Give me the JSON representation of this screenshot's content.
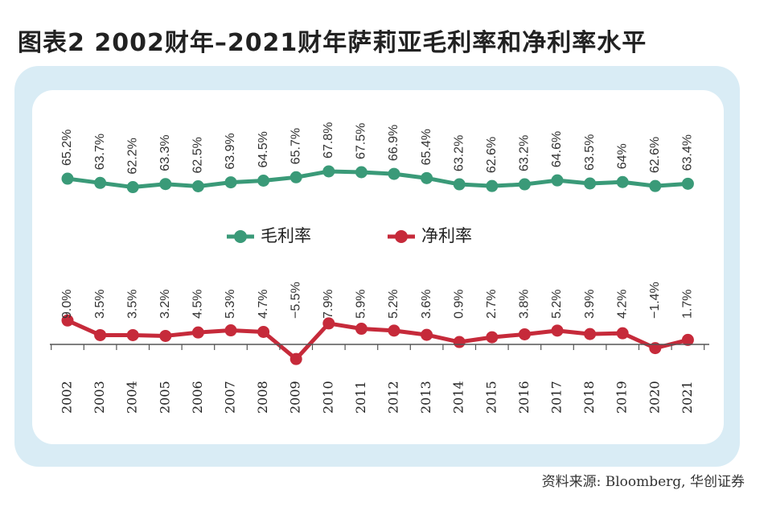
{
  "title": "图表2  2002财年–2021财年萨莉亚毛利率和净利率水平",
  "source": "资料来源: Bloomberg, 华创证券",
  "colors": {
    "gross": "#3a9a78",
    "net": "#c62a3a",
    "frame_outer": "#d9ecf5",
    "frame_inner": "#ffffff"
  },
  "chart_data": {
    "type": "line",
    "categories": [
      "2002",
      "2003",
      "2004",
      "2005",
      "2006",
      "2007",
      "2008",
      "2009",
      "2010",
      "2011",
      "2012",
      "2013",
      "2014",
      "2015",
      "2016",
      "2017",
      "2018",
      "2019",
      "2020",
      "2021"
    ],
    "series": [
      {
        "name": "毛利率",
        "values": [
          65.2,
          63.7,
          62.2,
          63.3,
          62.5,
          63.9,
          64.5,
          65.7,
          67.8,
          67.5,
          66.9,
          65.4,
          63.2,
          62.6,
          63.2,
          64.6,
          63.5,
          64,
          62.6,
          63.4
        ],
        "labels": [
          "65.2%",
          "63.7%",
          "62.2%",
          "63.3%",
          "62.5%",
          "63.9%",
          "64.5%",
          "65.7%",
          "67.8%",
          "67.5%",
          "66.9%",
          "65.4%",
          "63.2%",
          "62.6%",
          "63.2%",
          "64.6%",
          "63.5%",
          "64%",
          "62.6%",
          "63.4%"
        ]
      },
      {
        "name": "净利率",
        "values": [
          9.0,
          3.5,
          3.5,
          3.2,
          4.5,
          5.3,
          4.7,
          -5.5,
          7.9,
          5.9,
          5.2,
          3.6,
          0.9,
          2.7,
          3.8,
          5.2,
          3.9,
          4.2,
          -1.4,
          1.7
        ],
        "labels": [
          "9.0%",
          "3.5%",
          "3.5%",
          "3.2%",
          "4.5%",
          "5.3%",
          "4.7%",
          "−5.5%",
          "7.9%",
          "5.9%",
          "5.2%",
          "3.6%",
          "0.9%",
          "2.7%",
          "3.8%",
          "5.2%",
          "3.9%",
          "4.2%",
          "−1.4%",
          "1.7%"
        ]
      }
    ],
    "legend_position": "middle-center",
    "grid": false
  }
}
